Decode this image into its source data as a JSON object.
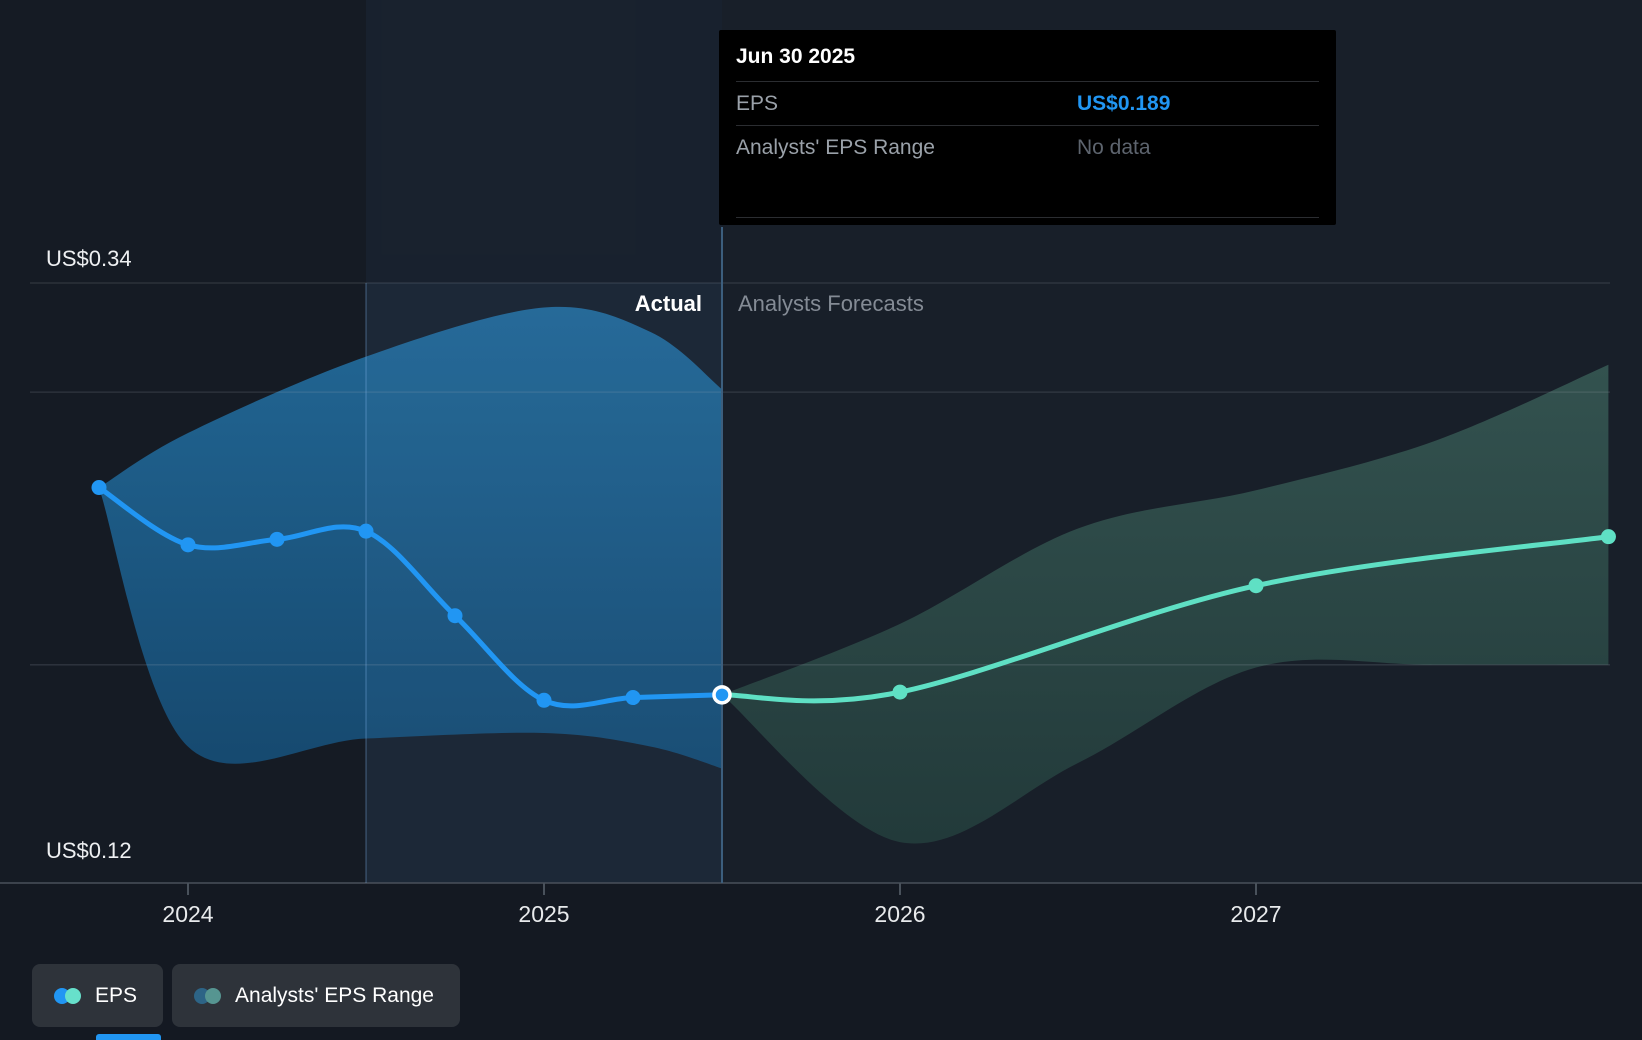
{
  "tooltip": {
    "title": "Jun 30 2025",
    "rows": [
      {
        "label": "EPS",
        "value": "US$0.189"
      },
      {
        "label": "Analysts' EPS Range",
        "value": "No data"
      }
    ]
  },
  "plot": {
    "actual_label": "Actual",
    "forecast_label": "Analysts Forecasts",
    "y_max_label": "US$0.34",
    "y_min_label": "US$0.12"
  },
  "legend": {
    "items": [
      {
        "label": "EPS",
        "dot_colors": [
          "#2196f3",
          "#67e0cb"
        ]
      },
      {
        "label": "Analysts' EPS Range",
        "dot_colors": [
          "#2d6486",
          "#569591"
        ]
      }
    ]
  },
  "colors": {
    "accent_blue": "#2196f3",
    "accent_teal": "#5fe0c4",
    "tooltip_bg": "#000000",
    "background": "#141922",
    "gridline": "rgba(170,180,190,0.18)"
  },
  "chart_data": {
    "type": "line",
    "x_axis": {
      "ticks": [
        2024,
        2025,
        2026,
        2027
      ],
      "tick_labels": [
        "2024",
        "2025",
        "2026",
        "2027"
      ]
    },
    "y_axis": {
      "min": 0.12,
      "max": 0.34,
      "min_label": "US$0.12",
      "max_label": "US$0.34",
      "gridline_values": [
        0.34,
        0.3,
        0.2
      ],
      "axis_value": 0.12,
      "unit": "US$ per share"
    },
    "divider_x": 2025.5,
    "highlight_x": [
      2024.5,
      2025.5
    ],
    "series": [
      {
        "name": "EPS",
        "color": "#2196f3",
        "end_marker": "ring",
        "x": [
          2023.75,
          2024.0,
          2024.25,
          2024.5,
          2024.75,
          2025.0,
          2025.25,
          2025.5
        ],
        "values": [
          0.265,
          0.244,
          0.246,
          0.249,
          0.218,
          0.187,
          0.188,
          0.189
        ]
      },
      {
        "name": "EPS analysts forecast",
        "color": "#5fe0c4",
        "first_dot": false,
        "x": [
          2025.5,
          2026.0,
          2027.0,
          2027.99
        ],
        "values": [
          0.189,
          0.19,
          0.229,
          0.247
        ]
      }
    ],
    "bands": [
      {
        "name": "Actual EPS range",
        "fill": "blue",
        "x": [
          2023.75,
          2024.0,
          2024.5,
          2025.0,
          2025.3,
          2025.5
        ],
        "upper": [
          0.265,
          0.285,
          0.313,
          0.331,
          0.322,
          0.301
        ],
        "lower": [
          0.265,
          0.17,
          0.173,
          0.175,
          0.17,
          0.162
        ]
      },
      {
        "name": "Analysts EPS range",
        "fill": "teal",
        "x": [
          2025.5,
          2026.0,
          2026.5,
          2027.0,
          2027.5,
          2027.99
        ],
        "upper": [
          0.189,
          0.215,
          0.25,
          0.264,
          0.282,
          0.31
        ],
        "lower": [
          0.189,
          0.135,
          0.164,
          0.199,
          0.2,
          0.2
        ]
      }
    ]
  }
}
